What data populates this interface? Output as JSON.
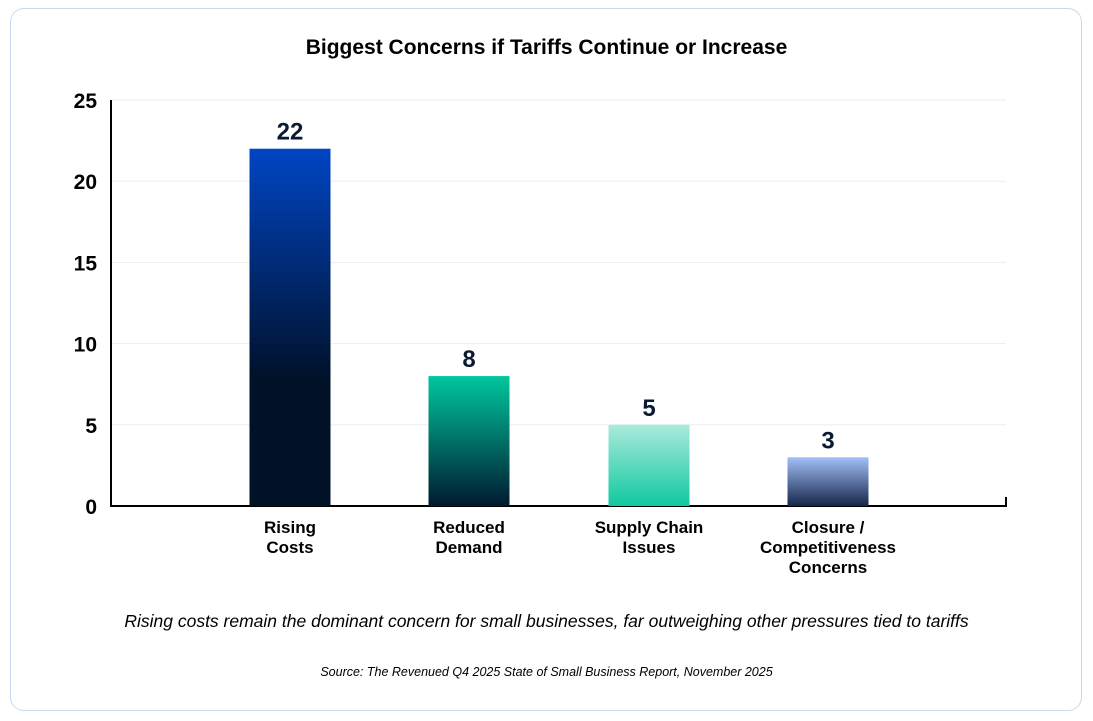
{
  "chart_data": {
    "type": "bar",
    "title": "Biggest Concerns if Tariffs Continue or Increase",
    "categories": [
      [
        "Rising",
        "Costs"
      ],
      [
        "Reduced",
        "Demand"
      ],
      [
        "Supply Chain",
        "Issues"
      ],
      [
        "Closure /",
        "Competitiveness",
        "Concerns"
      ]
    ],
    "values": [
      22,
      8,
      5,
      3
    ],
    "data_labels": [
      "22",
      "8",
      "5",
      "3"
    ],
    "ylim": [
      0,
      25
    ],
    "yticks": [
      0,
      5,
      10,
      15,
      20,
      25
    ],
    "ytick_labels": [
      "0",
      "5",
      "10",
      "15",
      "20",
      "25"
    ],
    "xlabel": "",
    "ylabel": "",
    "grid": true,
    "bar_gradients": [
      [
        "#0045c4",
        "#001128"
      ],
      [
        "#00c79e",
        "#001a30"
      ],
      [
        "#aaeadc",
        "#10c9a0"
      ],
      [
        "#a2c0f8",
        "#16264a"
      ]
    ]
  },
  "caption": "Rising costs remain the dominant concern for small businesses, far outweighing other pressures tied to tariffs",
  "source": "Source: The Revenued Q4 2025 State of Small Business Report, November 2025"
}
